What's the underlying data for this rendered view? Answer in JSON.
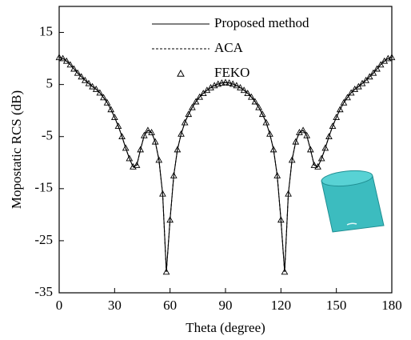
{
  "chart_data": {
    "type": "line",
    "x_label": "Theta (degree)",
    "y_label": "Mopostatic RCS (dB)",
    "x": [
      0,
      2,
      4,
      6,
      8,
      10,
      12,
      14,
      16,
      18,
      20,
      22,
      24,
      26,
      28,
      30,
      32,
      34,
      36,
      38,
      40,
      42,
      44,
      46,
      48,
      50,
      52,
      54,
      56,
      58,
      60,
      62,
      64,
      66,
      68,
      70,
      72,
      74,
      76,
      78,
      80,
      82,
      84,
      86,
      88,
      90,
      92,
      94,
      96,
      98,
      100,
      102,
      104,
      106,
      108,
      110,
      112,
      114,
      116,
      118,
      120,
      122,
      124,
      126,
      128,
      130,
      132,
      134,
      136,
      138,
      140,
      142,
      144,
      146,
      148,
      150,
      152,
      154,
      156,
      158,
      160,
      162,
      164,
      166,
      168,
      170,
      172,
      174,
      176,
      178,
      180
    ],
    "series": [
      {
        "name": "Proposed method",
        "color": "#000000",
        "style": "solid",
        "values": [
          10.2,
          10,
          9.5,
          8.8,
          8,
          7.2,
          6.5,
          5.8,
          5.2,
          4.6,
          4.1,
          3.4,
          2.5,
          1.5,
          0.2,
          -1.3,
          -3,
          -5,
          -7.2,
          -9.2,
          -10.8,
          -10.5,
          -7.5,
          -4.8,
          -3.8,
          -4.2,
          -6,
          -9.5,
          -16,
          -31,
          -21,
          -12.5,
          -7.5,
          -4.5,
          -2.3,
          -0.7,
          0.6,
          1.7,
          2.6,
          3.3,
          3.9,
          4.4,
          4.8,
          5.1,
          5.3,
          5.4,
          5.3,
          5.1,
          4.8,
          4.4,
          3.9,
          3.3,
          2.6,
          1.7,
          0.6,
          -0.7,
          -2.3,
          -4.5,
          -7.5,
          -12.5,
          -21,
          -31,
          -16,
          -9.5,
          -6,
          -4.2,
          -3.8,
          -4.8,
          -7.5,
          -10.5,
          -10.8,
          -9.2,
          -7.2,
          -5,
          -3,
          -1.3,
          0.2,
          1.5,
          2.5,
          3.4,
          4.1,
          4.6,
          5.2,
          5.8,
          6.5,
          7.2,
          8,
          8.8,
          9.5,
          10,
          10.2
        ]
      },
      {
        "name": "ACA",
        "color": "#000000",
        "style": "dashed",
        "values": [
          10.2,
          10,
          9.5,
          8.8,
          8,
          7.2,
          6.5,
          5.8,
          5.2,
          4.6,
          4.1,
          3.4,
          2.5,
          1.5,
          0.2,
          -1.3,
          -3,
          -5,
          -7.2,
          -9.2,
          -10.8,
          -10.5,
          -7.5,
          -4.8,
          -3.8,
          -4.2,
          -6,
          -9.5,
          -16,
          -31,
          -21,
          -12.5,
          -7.5,
          -4.5,
          -2.3,
          -0.7,
          0.6,
          1.7,
          2.6,
          3.3,
          3.9,
          4.4,
          4.8,
          5.1,
          5.3,
          5.4,
          5.3,
          5.1,
          4.8,
          4.4,
          3.9,
          3.3,
          2.6,
          1.7,
          0.6,
          -0.7,
          -2.3,
          -4.5,
          -7.5,
          -12.5,
          -21,
          -31,
          -16,
          -9.5,
          -6,
          -4.2,
          -3.8,
          -4.8,
          -7.5,
          -10.5,
          -10.8,
          -9.2,
          -7.2,
          -5,
          -3,
          -1.3,
          0.2,
          1.5,
          2.5,
          3.4,
          4.1,
          4.6,
          5.2,
          5.8,
          6.5,
          7.2,
          8,
          8.8,
          9.5,
          10,
          10.2
        ]
      },
      {
        "name": "FEKO",
        "color": "#000000",
        "style": "triangle",
        "values": [
          10.2,
          10,
          9.5,
          8.8,
          8,
          7.2,
          6.5,
          5.8,
          5.2,
          4.6,
          4.1,
          3.4,
          2.5,
          1.5,
          0.2,
          -1.3,
          -3,
          -5,
          -7.2,
          -9.2,
          -10.8,
          -10.5,
          -7.5,
          -4.8,
          -3.8,
          -4.2,
          -6,
          -9.5,
          -16,
          -31,
          -21,
          -12.5,
          -7.5,
          -4.5,
          -2.3,
          -0.7,
          0.6,
          1.7,
          2.6,
          3.3,
          3.9,
          4.4,
          4.8,
          5.1,
          5.3,
          5.4,
          5.3,
          5.1,
          4.8,
          4.4,
          3.9,
          3.3,
          2.6,
          1.7,
          0.6,
          -0.7,
          -2.3,
          -4.5,
          -7.5,
          -12.5,
          -21,
          -31,
          -16,
          -9.5,
          -6,
          -4.2,
          -3.8,
          -4.8,
          -7.5,
          -10.5,
          -10.8,
          -9.2,
          -7.2,
          -5,
          -3,
          -1.3,
          0.2,
          1.5,
          2.5,
          3.4,
          4.1,
          4.6,
          5.2,
          5.8,
          6.5,
          7.2,
          8,
          8.8,
          9.5,
          10,
          10.2
        ]
      }
    ],
    "xlim": [
      0,
      180
    ],
    "xticks": [
      0,
      30,
      60,
      90,
      120,
      150,
      180
    ],
    "ylim": [
      -35,
      20
    ],
    "yticks": [
      -35,
      -25,
      -15,
      -5,
      5,
      15
    ],
    "grid": false
  }
}
